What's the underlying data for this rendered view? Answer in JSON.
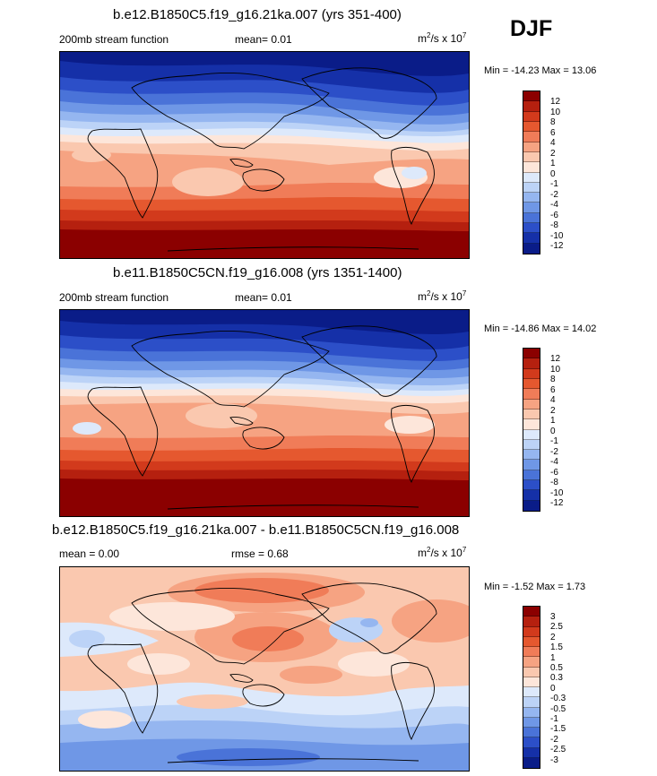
{
  "season": "DJF",
  "panels": [
    {
      "title": "b.e12.B1850C5.f19_g16.21ka.007 (yrs 351-400)",
      "left_label": "200mb stream function",
      "center_label": "mean=  0.01",
      "units_base": "m",
      "units_exp": "2",
      "units_mid": "/s x 10",
      "units_exp2": "7",
      "minmax": "Min = -14.23 Max =  13.06",
      "colorbar_labels": [
        "12",
        "10",
        "8",
        "6",
        "4",
        "2",
        "1",
        "0",
        "-1",
        "-2",
        "-4",
        "-6",
        "-8",
        "-10",
        "-12"
      ]
    },
    {
      "title": "b.e11.B1850C5CN.f19_g16.008 (yrs 1351-1400)",
      "left_label": "200mb stream function",
      "center_label": "mean=  0.01",
      "units_base": "m",
      "units_exp": "2",
      "units_mid": "/s x 10",
      "units_exp2": "7",
      "minmax": "Min = -14.86 Max =  14.02",
      "colorbar_labels": [
        "12",
        "10",
        "8",
        "6",
        "4",
        "2",
        "1",
        "0",
        "-1",
        "-2",
        "-4",
        "-6",
        "-8",
        "-10",
        "-12"
      ]
    },
    {
      "title": "b.e12.B1850C5.f19_g16.21ka.007 - b.e11.B1850C5CN.f19_g16.008",
      "left_label": "mean =   0.00",
      "center_label": "rmse =   0.68",
      "units_base": "m",
      "units_exp": "2",
      "units_mid": "/s x 10",
      "units_exp2": "7",
      "minmax": "Min =  -1.52 Max =   1.73",
      "colorbar_labels": [
        "3",
        "2.5",
        "2",
        "1.5",
        "1",
        "0.5",
        "0.3",
        "0",
        "-0.3",
        "-0.5",
        "-1",
        "-1.5",
        "-2",
        "-2.5",
        "-3"
      ]
    }
  ],
  "colors": {
    "colorbar": [
      "#8b0000",
      "#b5200f",
      "#d23a1c",
      "#e5582f",
      "#f07c58",
      "#f6a382",
      "#fac8af",
      "#fde6da",
      "#dde9fb",
      "#bcd3f7",
      "#95b6f0",
      "#6f97e6",
      "#4a73d8",
      "#2c4fc8",
      "#1530a8",
      "#0a1c88"
    ]
  }
}
